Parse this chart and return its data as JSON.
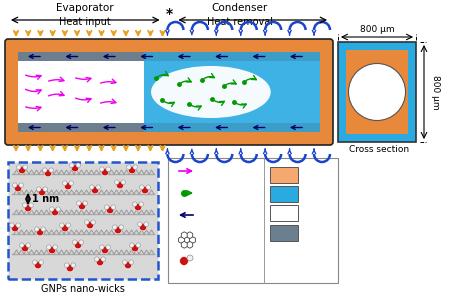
{
  "bg_color": "#ffffff",
  "title_evaporator": "Evaporator",
  "title_condenser": "Condenser",
  "label_heat_input": "Heat input",
  "label_heat_removal": "Heat removal",
  "label_cross_section": "Cross section",
  "label_800um_h": "800 μm",
  "label_800um_v": "800 μm",
  "label_gnps_nano_wicks": "GNPs nano-wicks",
  "label_1nm": "1 nm",
  "solid_color": "#f5a96e",
  "liquid_color": "#29aae1",
  "vapour_color": "#ffffff",
  "gnps_color": "#6b7f8f",
  "outer_wall_color": "#e8883a",
  "wick_color": "#6b7f8f",
  "arrow_heat_color": "#e8a020",
  "blue_curl_color": "#1a44cc",
  "evap_arrow_color": "#ee00ee",
  "cond_arrow_color": "#009900",
  "water_circ_color": "#000066"
}
